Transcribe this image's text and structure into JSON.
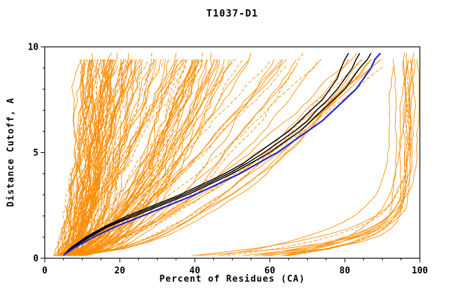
{
  "chart_data": {
    "type": "line",
    "title": "T1037-D1",
    "xlabel": "Percent of Residues (CA)",
    "ylabel": "Distance Cutoff, A",
    "xlim": [
      0,
      100
    ],
    "ylim": [
      0,
      10
    ],
    "xticks_labeled": [
      0,
      20,
      40,
      60,
      80,
      100
    ],
    "xtick_minor_step": 5,
    "yticks_labeled": [
      0,
      5,
      10
    ],
    "ytick_minor_step": 1,
    "grid": false,
    "legend": "none",
    "colors": {
      "background_models": "#FF8C00",
      "reference_models": "#000000",
      "highlight_model": "#2222CC",
      "axis": "#000000"
    },
    "background_models": {
      "seed": 1337,
      "groups": [
        {
          "name": "steep-left-cluster",
          "count": 95,
          "x_start": [
            3,
            10
          ],
          "x_end": [
            11,
            45
          ],
          "exponent": [
            0.35,
            1.0
          ],
          "jitter": 1.6
        },
        {
          "name": "mid-fan",
          "count": 48,
          "x_start": [
            4,
            11
          ],
          "x_end": [
            40,
            92
          ],
          "exponent": [
            0.45,
            0.8
          ],
          "jitter": 1.3
        },
        {
          "name": "right-good-models",
          "count": 14,
          "kind": "saturating",
          "x_start": [
            28,
            62
          ],
          "x_end": [
            93,
            100
          ],
          "tau": [
            0.5,
            1.3
          ],
          "jitter": 0.8
        }
      ]
    },
    "highlight_series": [
      {
        "name": "black-model-3",
        "color_key": "reference_models",
        "stroke_width": 1.5,
        "points": [
          [
            5,
            0.15
          ],
          [
            7.2,
            0.5
          ],
          [
            11.5,
            1
          ],
          [
            16.5,
            1.5
          ],
          [
            23,
            2
          ],
          [
            30,
            2.5
          ],
          [
            37,
            3
          ],
          [
            43,
            3.5
          ],
          [
            49,
            4
          ],
          [
            54,
            4.5
          ],
          [
            58.5,
            5
          ],
          [
            62.5,
            5.5
          ],
          [
            66.5,
            6
          ],
          [
            70,
            6.5
          ],
          [
            72.5,
            7
          ],
          [
            75.5,
            7.5
          ],
          [
            78,
            8
          ],
          [
            80,
            8.5
          ],
          [
            82,
            9
          ],
          [
            83,
            9.4
          ],
          [
            84,
            9.7
          ]
        ]
      },
      {
        "name": "black-model-1",
        "color_key": "reference_models",
        "stroke_width": 1.5,
        "points": [
          [
            5,
            0.15
          ],
          [
            7,
            0.5
          ],
          [
            11,
            1
          ],
          [
            16,
            1.5
          ],
          [
            22,
            2
          ],
          [
            29,
            2.5
          ],
          [
            36,
            3
          ],
          [
            42,
            3.5
          ],
          [
            48,
            4
          ],
          [
            53,
            4.5
          ],
          [
            57,
            5
          ],
          [
            61,
            5.5
          ],
          [
            65,
            6
          ],
          [
            68,
            6.5
          ],
          [
            71,
            7
          ],
          [
            74,
            7.5
          ],
          [
            76,
            8
          ],
          [
            78,
            8.5
          ],
          [
            79,
            9
          ],
          [
            80,
            9.4
          ],
          [
            81,
            9.7
          ]
        ]
      },
      {
        "name": "black-model-2",
        "color_key": "reference_models",
        "stroke_width": 1.5,
        "points": [
          [
            5,
            0.15
          ],
          [
            7.5,
            0.5
          ],
          [
            12,
            1
          ],
          [
            17,
            1.5
          ],
          [
            24,
            2
          ],
          [
            31,
            2.5
          ],
          [
            38,
            3
          ],
          [
            44,
            3.5
          ],
          [
            50,
            4
          ],
          [
            55,
            4.5
          ],
          [
            60,
            5
          ],
          [
            64,
            5.5
          ],
          [
            68,
            6
          ],
          [
            71,
            6.5
          ],
          [
            74,
            7
          ],
          [
            77,
            7.5
          ],
          [
            80,
            8
          ],
          [
            82,
            8.5
          ],
          [
            84,
            9
          ],
          [
            86,
            9.4
          ],
          [
            87,
            9.7
          ]
        ]
      },
      {
        "name": "blue-model",
        "color_key": "highlight_model",
        "stroke_width": 2.2,
        "points": [
          [
            5,
            0.15
          ],
          [
            8,
            0.5
          ],
          [
            13,
            1
          ],
          [
            19,
            1.5
          ],
          [
            26,
            2
          ],
          [
            33,
            2.5
          ],
          [
            40,
            3
          ],
          [
            46,
            3.5
          ],
          [
            52,
            4
          ],
          [
            57,
            4.5
          ],
          [
            62,
            5
          ],
          [
            66,
            5.5
          ],
          [
            70,
            6
          ],
          [
            74,
            6.5
          ],
          [
            77,
            7
          ],
          [
            80,
            7.5
          ],
          [
            83,
            8
          ],
          [
            85,
            8.5
          ],
          [
            87,
            9
          ],
          [
            88,
            9.4
          ],
          [
            89.5,
            9.7
          ]
        ]
      }
    ]
  }
}
